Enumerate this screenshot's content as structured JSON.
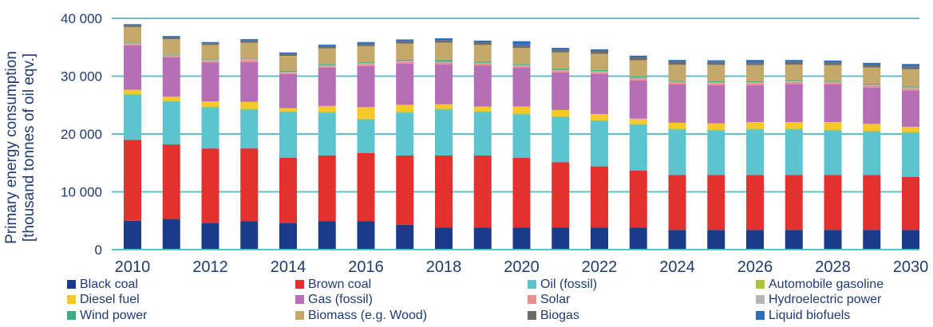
{
  "chart_data": {
    "type": "bar",
    "stacked": true,
    "ylabel": "Primary energy consumption",
    "ylabel_unit": "[thousand tonnes of oil eqv.]",
    "ylim": [
      0,
      40000
    ],
    "yticks": [
      0,
      10000,
      20000,
      30000,
      40000
    ],
    "ytick_labels": [
      "0",
      "10 000",
      "20 000",
      "30 000",
      "40 000"
    ],
    "grid": true,
    "legend_position": "bottom",
    "categories": [
      2010,
      2011,
      2012,
      2013,
      2014,
      2015,
      2016,
      2017,
      2018,
      2019,
      2020,
      2021,
      2022,
      2023,
      2024,
      2025,
      2026,
      2027,
      2028,
      2029,
      2030
    ],
    "x_tick_labels": [
      "2010",
      "2012",
      "2014",
      "2016",
      "2018",
      "2020",
      "2022",
      "2024",
      "2026",
      "2028",
      "2030"
    ],
    "series": [
      {
        "name": "Black coal",
        "color": "#1a3a8a",
        "values": [
          5000,
          5300,
          4600,
          4900,
          4600,
          4900,
          4900,
          4300,
          3800,
          3800,
          3800,
          3800,
          3800,
          3800,
          3400,
          3400,
          3400,
          3400,
          3400,
          3400,
          3400
        ]
      },
      {
        "name": "Brown coal",
        "color": "#e4302f",
        "values": [
          14000,
          12900,
          12900,
          12600,
          11300,
          11400,
          11800,
          12000,
          12500,
          12500,
          12100,
          11300,
          10600,
          9900,
          9500,
          9500,
          9500,
          9500,
          9500,
          9500,
          9200
        ]
      },
      {
        "name": "Oil (fossil)",
        "color": "#5bc4cf",
        "values": [
          7800,
          7400,
          7100,
          6700,
          7900,
          7400,
          5800,
          7400,
          7900,
          7500,
          7500,
          7800,
          7800,
          7900,
          7900,
          7700,
          7900,
          7900,
          7700,
          7500,
          7600
        ]
      },
      {
        "name": "Automobile gasoline",
        "color": "#a8c43c",
        "values": [
          150,
          150,
          150,
          150,
          150,
          150,
          150,
          150,
          150,
          150,
          150,
          150,
          150,
          150,
          150,
          150,
          150,
          150,
          150,
          150,
          150
        ]
      },
      {
        "name": "Diesel fuel",
        "color": "#f7c82a",
        "values": [
          700,
          700,
          900,
          1200,
          500,
          1000,
          2000,
          1200,
          800,
          800,
          1200,
          1100,
          1100,
          900,
          1000,
          1100,
          1100,
          1100,
          1300,
          1200,
          900
        ]
      },
      {
        "name": "Gas (fossil)",
        "color": "#b56fb6",
        "values": [
          7700,
          6800,
          6700,
          6900,
          5900,
          6600,
          7100,
          7100,
          6900,
          7100,
          6700,
          6500,
          6900,
          6600,
          6600,
          6600,
          6400,
          6600,
          6500,
          6300,
          6300
        ]
      },
      {
        "name": "Solar",
        "color": "#ef8c8e",
        "values": [
          200,
          200,
          250,
          250,
          250,
          250,
          300,
          300,
          300,
          300,
          300,
          300,
          300,
          350,
          350,
          350,
          350,
          350,
          350,
          350,
          350
        ]
      },
      {
        "name": "Hydroelectric power",
        "color": "#b5b5b5",
        "values": [
          150,
          150,
          200,
          300,
          150,
          200,
          200,
          200,
          150,
          150,
          150,
          150,
          200,
          150,
          150,
          150,
          150,
          150,
          150,
          150,
          150
        ]
      },
      {
        "name": "Wind power",
        "color": "#3aaf84",
        "values": [
          100,
          100,
          100,
          100,
          150,
          200,
          150,
          200,
          300,
          200,
          200,
          200,
          200,
          200,
          150,
          200,
          150,
          150,
          150,
          150,
          150
        ]
      },
      {
        "name": "Biomass (e.g. Wood)",
        "color": "#c5a96a",
        "values": [
          2700,
          2700,
          2500,
          2700,
          2600,
          2700,
          2800,
          2800,
          3000,
          2900,
          2800,
          2800,
          2800,
          2800,
          2800,
          2800,
          2800,
          2700,
          2700,
          2800,
          3000
        ]
      },
      {
        "name": "Biogas",
        "color": "#6d6d6d",
        "values": [
          300,
          350,
          300,
          350,
          350,
          400,
          400,
          400,
          450,
          450,
          450,
          500,
          500,
          500,
          500,
          500,
          500,
          500,
          500,
          500,
          500
        ]
      },
      {
        "name": "Liquid biofuels",
        "color": "#2e6fbb",
        "values": [
          200,
          200,
          200,
          250,
          250,
          250,
          300,
          300,
          300,
          300,
          700,
          300,
          300,
          300,
          300,
          300,
          400,
          300,
          300,
          300,
          400
        ]
      }
    ]
  }
}
